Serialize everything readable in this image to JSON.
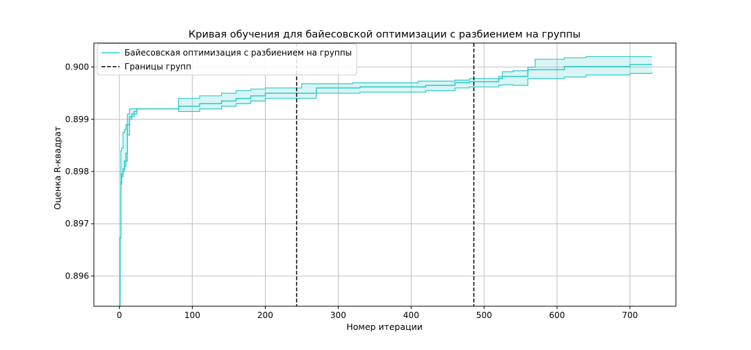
{
  "chart_data": {
    "type": "line",
    "title": "Кривая обучения для байесовской оптимизации с разбиением на группы",
    "xlabel": "Номер итерации",
    "ylabel": "Оценка R-квадрат",
    "xlim": [
      -35,
      763
    ],
    "ylim": [
      0.89542,
      0.90046
    ],
    "x_ticks": [
      0,
      100,
      200,
      300,
      400,
      500,
      600,
      700
    ],
    "y_ticks": [
      0.896,
      0.897,
      0.898,
      0.899,
      0.9
    ],
    "y_tick_labels": [
      "0.896",
      "0.897",
      "0.898",
      "0.899",
      "0.900"
    ],
    "grid": true,
    "legend_position": "top-left",
    "series": [
      {
        "name": "Байесовская оптимизация с разбиением на группы",
        "color": "#2ec9c9",
        "x": [
          0,
          1,
          2,
          3,
          5,
          7,
          9,
          11,
          14,
          17,
          20,
          24,
          80,
          81,
          110,
          140,
          160,
          180,
          200,
          250,
          270,
          320,
          330,
          410,
          420,
          460,
          480,
          520,
          525,
          540,
          560,
          570,
          610,
          640,
          700,
          730
        ],
        "mean": [
          0.89542,
          0.89673,
          0.8978,
          0.89795,
          0.89805,
          0.8982,
          0.89835,
          0.8989,
          0.89905,
          0.8991,
          0.89915,
          0.8992,
          0.8992,
          0.89925,
          0.8993,
          0.89935,
          0.8994,
          0.89945,
          0.8995,
          0.8995,
          0.8996,
          0.8996,
          0.89962,
          0.89962,
          0.89965,
          0.8997,
          0.89972,
          0.89978,
          0.89982,
          0.89982,
          0.89995,
          0.89995,
          0.90001,
          0.90001,
          0.90005,
          0.90005
        ],
        "upper": [
          0.89542,
          0.89673,
          0.8984,
          0.89845,
          0.89875,
          0.8988,
          0.8989,
          0.8991,
          0.8992,
          0.8992,
          0.8992,
          0.8992,
          0.8992,
          0.8994,
          0.89945,
          0.8995,
          0.89955,
          0.89958,
          0.8996,
          0.89968,
          0.89968,
          0.8997,
          0.8997,
          0.89973,
          0.89973,
          0.89975,
          0.89978,
          0.89982,
          0.89991,
          0.89993,
          0.9,
          0.90015,
          0.90018,
          0.9002,
          0.9002,
          0.9002
        ],
        "lower": [
          0.89542,
          0.89673,
          0.89775,
          0.8979,
          0.898,
          0.8981,
          0.8982,
          0.8987,
          0.899,
          0.89905,
          0.8991,
          0.8992,
          0.8992,
          0.89915,
          0.8992,
          0.89925,
          0.8993,
          0.89935,
          0.8994,
          0.8994,
          0.8995,
          0.8995,
          0.89952,
          0.89952,
          0.89955,
          0.8996,
          0.89962,
          0.89965,
          0.89966,
          0.89965,
          0.89978,
          0.89978,
          0.89981,
          0.89985,
          0.89988,
          0.8999
        ]
      },
      {
        "name": "Границы групп",
        "color": "#000000",
        "style": "dashed",
        "vlines": [
          243,
          486
        ]
      }
    ]
  }
}
